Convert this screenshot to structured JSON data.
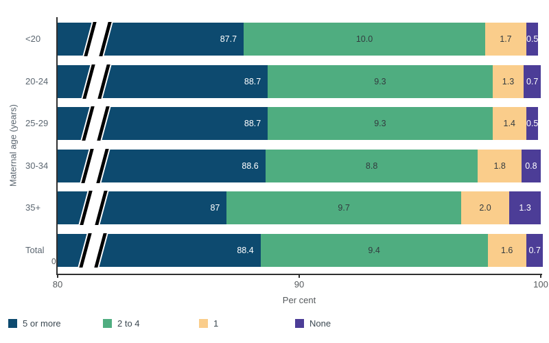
{
  "chart_data": {
    "type": "bar",
    "variant": "horizontal-stacked",
    "title": "",
    "categories": [
      "<20",
      "20-24",
      "25-29",
      "30-34",
      "35+",
      "Total"
    ],
    "series": [
      {
        "name": "5 or more",
        "color": "#0D4A6F",
        "label_color": "#FFFFFF",
        "values": [
          87.7,
          88.7,
          88.7,
          88.6,
          87,
          88.4
        ],
        "labels": [
          "87.7",
          "88.7",
          "88.7",
          "88.6",
          "87",
          "88.4"
        ]
      },
      {
        "name": "2 to 4",
        "color": "#4FAD80",
        "label_color": "#333B3F",
        "values": [
          10.0,
          9.3,
          9.3,
          8.8,
          9.7,
          9.4
        ],
        "labels": [
          "10.0",
          "9.3",
          "9.3",
          "8.8",
          "9.7",
          "9.4"
        ]
      },
      {
        "name": "1",
        "color": "#FACD8B",
        "label_color": "#333B3F",
        "values": [
          1.7,
          1.3,
          1.4,
          1.8,
          2.0,
          1.6
        ],
        "labels": [
          "1.7",
          "1.3",
          "1.4",
          "1.8",
          "2.0",
          "1.6"
        ]
      },
      {
        "name": "None",
        "color": "#4C3D97",
        "label_color": "#FFFFFF",
        "values": [
          0.5,
          0.7,
          0.5,
          0.8,
          1.3,
          0.7
        ],
        "labels": [
          "0.5",
          "0.7",
          "0.5",
          "0.8",
          "1.3",
          "0.7"
        ]
      }
    ],
    "xlabel": "Per cent",
    "ylabel": "Maternal age (years)",
    "xlim": [
      80,
      100
    ],
    "x_ticks": [
      80,
      90,
      100
    ],
    "x_tick_labels": [
      "80",
      "90",
      "100"
    ],
    "axis_break": {
      "origin_label": "0",
      "style": "double-slash"
    },
    "legend_position": "bottom",
    "grid": false
  }
}
